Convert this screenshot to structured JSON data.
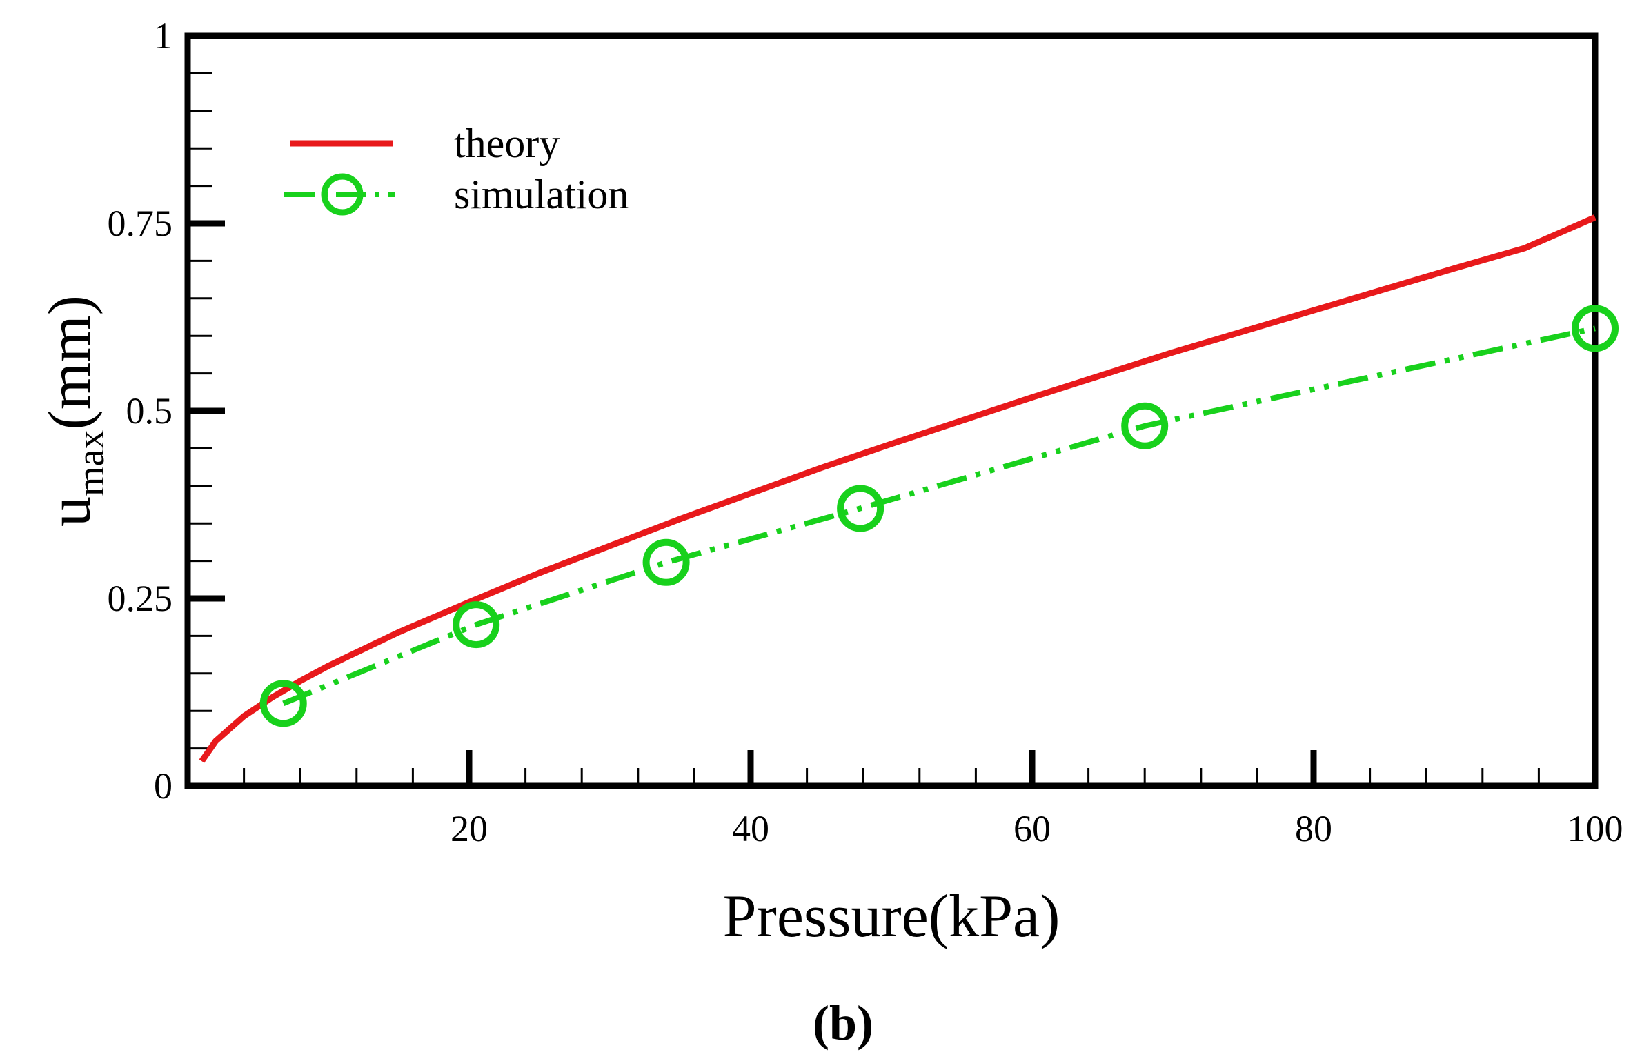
{
  "chart_data": {
    "type": "line",
    "title": "",
    "panel_label": "(b)",
    "xlabel": "Pressure(kPa)",
    "ylabel": {
      "base": "u",
      "subscript": "max",
      "suffix": "(mm)"
    },
    "xlim": [
      0,
      100
    ],
    "ylim": [
      0,
      1
    ],
    "x_major_ticks": [
      20,
      40,
      60,
      80,
      100
    ],
    "x_tick_labels": [
      "20",
      "40",
      "60",
      "80",
      "100"
    ],
    "x_minor_step": 4,
    "y_major_ticks": [
      0,
      0.25,
      0.5,
      0.75,
      1
    ],
    "y_tick_labels": [
      "0",
      "0.25",
      "0.5",
      "0.75",
      "1"
    ],
    "y_minor_step": 0.05,
    "grid": false,
    "legend_position": "top-left",
    "series": [
      {
        "name": "theory",
        "color": "#e8191b",
        "style": "solid",
        "marker": "none",
        "x": [
          1,
          2,
          4,
          6,
          8,
          10,
          12,
          15,
          20,
          25,
          30,
          35,
          40,
          45,
          50,
          55,
          60,
          65,
          70,
          75,
          80,
          85,
          90,
          95,
          100
        ],
        "y": [
          0.033,
          0.06,
          0.093,
          0.118,
          0.14,
          0.16,
          0.178,
          0.205,
          0.245,
          0.284,
          0.32,
          0.356,
          0.39,
          0.424,
          0.456,
          0.487,
          0.518,
          0.548,
          0.578,
          0.606,
          0.634,
          0.662,
          0.69,
          0.717,
          0.758
        ]
      },
      {
        "name": "simulation",
        "color": "#18d11c",
        "style": "dash-dot-dot",
        "marker": "circle",
        "x": [
          6.8,
          20.5,
          34,
          47.8,
          68,
          100
        ],
        "y": [
          0.11,
          0.215,
          0.298,
          0.37,
          0.48,
          0.61
        ]
      }
    ]
  }
}
